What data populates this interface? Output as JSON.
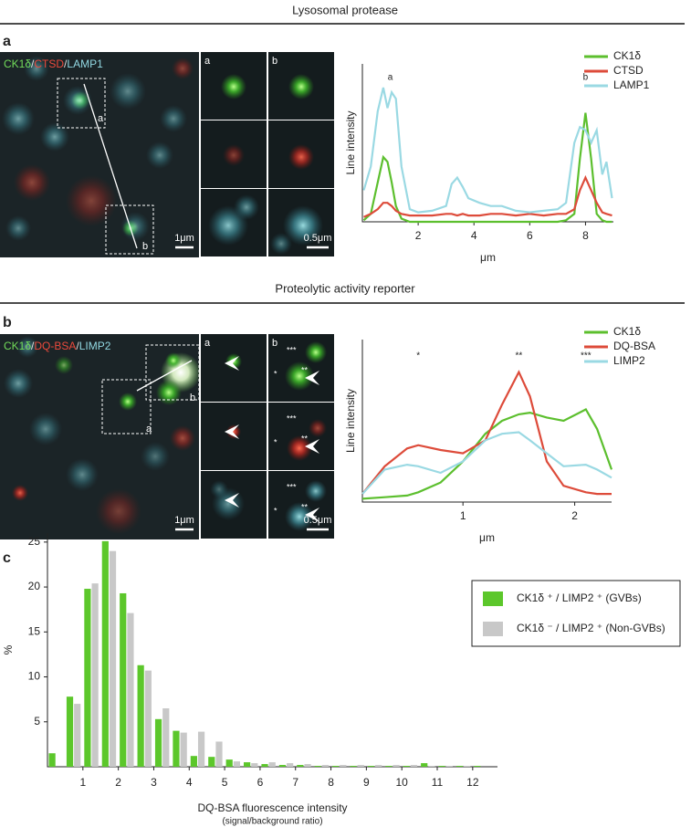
{
  "sections": [
    "Lysosomal protease",
    "Proteolytic activity reporter"
  ],
  "panel_labels": [
    "a",
    "b",
    "c"
  ],
  "images": [
    {
      "channels": [
        {
          "name": "CK1δ",
          "color": "#72dc5a"
        },
        {
          "name": "CTSD",
          "color": "#ec4a3c"
        },
        {
          "name": "LAMP1",
          "color": "#92d8e2"
        }
      ],
      "separator": "/",
      "insets": [
        "a",
        "b"
      ],
      "scale_main": "1μm",
      "scale_inset": "0.5μm"
    },
    {
      "channels": [
        {
          "name": "CK1δ",
          "color": "#72dc5a"
        },
        {
          "name": "DQ-BSA",
          "color": "#ec4a3c"
        },
        {
          "name": "LIMP2",
          "color": "#92d8e2"
        }
      ],
      "separator": "/",
      "insets": [
        "a",
        "b"
      ],
      "scale_main": "1μm",
      "scale_inset": "0.5μm",
      "stars": [
        "*",
        "**",
        "***"
      ]
    }
  ],
  "chart_data": [
    {
      "type": "line",
      "y_label": "Line intensity",
      "x_label": "μm",
      "x": [
        0.05,
        0.3,
        0.55,
        0.75,
        0.9,
        1.05,
        1.2,
        1.4,
        1.7,
        2,
        2.5,
        3,
        3.2,
        3.4,
        3.6,
        3.8,
        4.2,
        4.6,
        5,
        5.5,
        6,
        6.5,
        7,
        7.3,
        7.6,
        7.8,
        8,
        8.2,
        8.4,
        8.6,
        8.75,
        8.95
      ],
      "series": [
        {
          "name": "CK1δ",
          "color": "#5cbf2e",
          "values": [
            0.01,
            0.05,
            0.25,
            0.41,
            0.38,
            0.25,
            0.1,
            0.02,
            0,
            0,
            0,
            0,
            0,
            0,
            0,
            0,
            0,
            0,
            0,
            0,
            0,
            0,
            0,
            0.01,
            0.05,
            0.4,
            0.69,
            0.4,
            0.05,
            0.01,
            0,
            0
          ]
        },
        {
          "name": "CTSD",
          "color": "#dd4b3a",
          "values": [
            0.03,
            0.05,
            0.08,
            0.12,
            0.12,
            0.1,
            0.07,
            0.05,
            0.04,
            0.04,
            0.04,
            0.05,
            0.05,
            0.04,
            0.05,
            0.04,
            0.04,
            0.05,
            0.05,
            0.04,
            0.05,
            0.04,
            0.05,
            0.05,
            0.08,
            0.2,
            0.28,
            0.2,
            0.12,
            0.06,
            0.05,
            0.04
          ]
        },
        {
          "name": "LAMP1",
          "color": "#9ad9e3",
          "values": [
            0.2,
            0.35,
            0.7,
            0.85,
            0.72,
            0.82,
            0.78,
            0.35,
            0.08,
            0.06,
            0.07,
            0.1,
            0.24,
            0.28,
            0.22,
            0.15,
            0.12,
            0.1,
            0.1,
            0.07,
            0.06,
            0.07,
            0.08,
            0.12,
            0.5,
            0.6,
            0.58,
            0.5,
            0.58,
            0.3,
            0.38,
            0.15
          ]
        }
      ],
      "xlim": [
        0,
        9
      ],
      "ylim": [
        0,
        1
      ],
      "xticks": [
        2,
        4,
        6,
        8
      ],
      "legend": "upper right",
      "annotations": [
        {
          "text": "a",
          "x": 1
        },
        {
          "text": "b",
          "x": 8
        }
      ]
    },
    {
      "type": "line",
      "y_label": "Line intensity",
      "x_label": "μm",
      "x": [
        0.1,
        0.3,
        0.5,
        0.6,
        0.8,
        1,
        1.2,
        1.35,
        1.5,
        1.6,
        1.75,
        1.9,
        2.1,
        2.2,
        2.33
      ],
      "series": [
        {
          "name": "CK1δ",
          "color": "#5cbf2e",
          "values": [
            0.02,
            0.03,
            0.04,
            0.06,
            0.12,
            0.25,
            0.42,
            0.5,
            0.54,
            0.55,
            0.52,
            0.5,
            0.57,
            0.45,
            0.2
          ]
        },
        {
          "name": "DQ-BSA",
          "color": "#dd4b3a",
          "values": [
            0.05,
            0.22,
            0.33,
            0.35,
            0.32,
            0.3,
            0.38,
            0.6,
            0.8,
            0.65,
            0.25,
            0.1,
            0.06,
            0.05,
            0.05
          ]
        },
        {
          "name": "LIMP2",
          "color": "#9ad9e3",
          "values": [
            0.05,
            0.2,
            0.23,
            0.22,
            0.18,
            0.25,
            0.38,
            0.42,
            0.43,
            0.38,
            0.3,
            0.22,
            0.23,
            0.2,
            0.15
          ]
        }
      ],
      "xlim": [
        0.1,
        2.33
      ],
      "ylim": [
        0,
        1
      ],
      "xticks": [
        1,
        2
      ],
      "legend": "upper right",
      "annotations": [
        {
          "text": "*",
          "x": 0.6
        },
        {
          "text": "**",
          "x": 1.5
        },
        {
          "text": "***",
          "x": 2.1
        }
      ]
    },
    {
      "type": "histogram",
      "y_label": "%",
      "x_label": "DQ-BSA fluorescence intensity",
      "x_sublabel": "(signal/background ratio)",
      "bins": [
        0,
        0.5,
        1,
        1.5,
        2,
        2.5,
        3,
        3.5,
        4,
        4.5,
        5,
        5.5,
        6,
        6.5,
        7,
        7.5,
        8,
        8.5,
        9,
        9.5,
        10,
        10.5,
        11,
        11.5,
        12,
        12.5
      ],
      "series": [
        {
          "name": "CK1δ ⁺ / LIMP2 ⁺ (GVBs)",
          "color": "#5cc72b",
          "values": [
            1.5,
            7.8,
            19.8,
            25.1,
            19.3,
            11.3,
            5.3,
            4.0,
            1.2,
            1.1,
            0.8,
            0.5,
            0.3,
            0.2,
            0.2,
            0.1,
            0.1,
            0.1,
            0.1,
            0.1,
            0.1,
            0.4,
            0.1,
            0.1,
            0.1
          ]
        },
        {
          "name": "CK1δ ⁻ / LIMP2 ⁺ (Non-GVBs)",
          "color": "#c8c8c8",
          "values": [
            0,
            7.0,
            20.4,
            24.0,
            17.1,
            10.7,
            6.5,
            3.8,
            3.9,
            2.8,
            0.6,
            0.4,
            0.5,
            0.4,
            0.3,
            0.2,
            0.2,
            0.2,
            0.2,
            0.2,
            0.2,
            0.1,
            0.1,
            0.1,
            0
          ]
        }
      ],
      "xlim": [
        0,
        12.7
      ],
      "ylim": [
        0,
        26
      ],
      "xticks": [
        1,
        2,
        3,
        4,
        5,
        6,
        7,
        8,
        9,
        10,
        11,
        12
      ],
      "yticks": [
        5,
        10,
        15,
        20,
        25
      ],
      "legend": "upper right"
    }
  ]
}
